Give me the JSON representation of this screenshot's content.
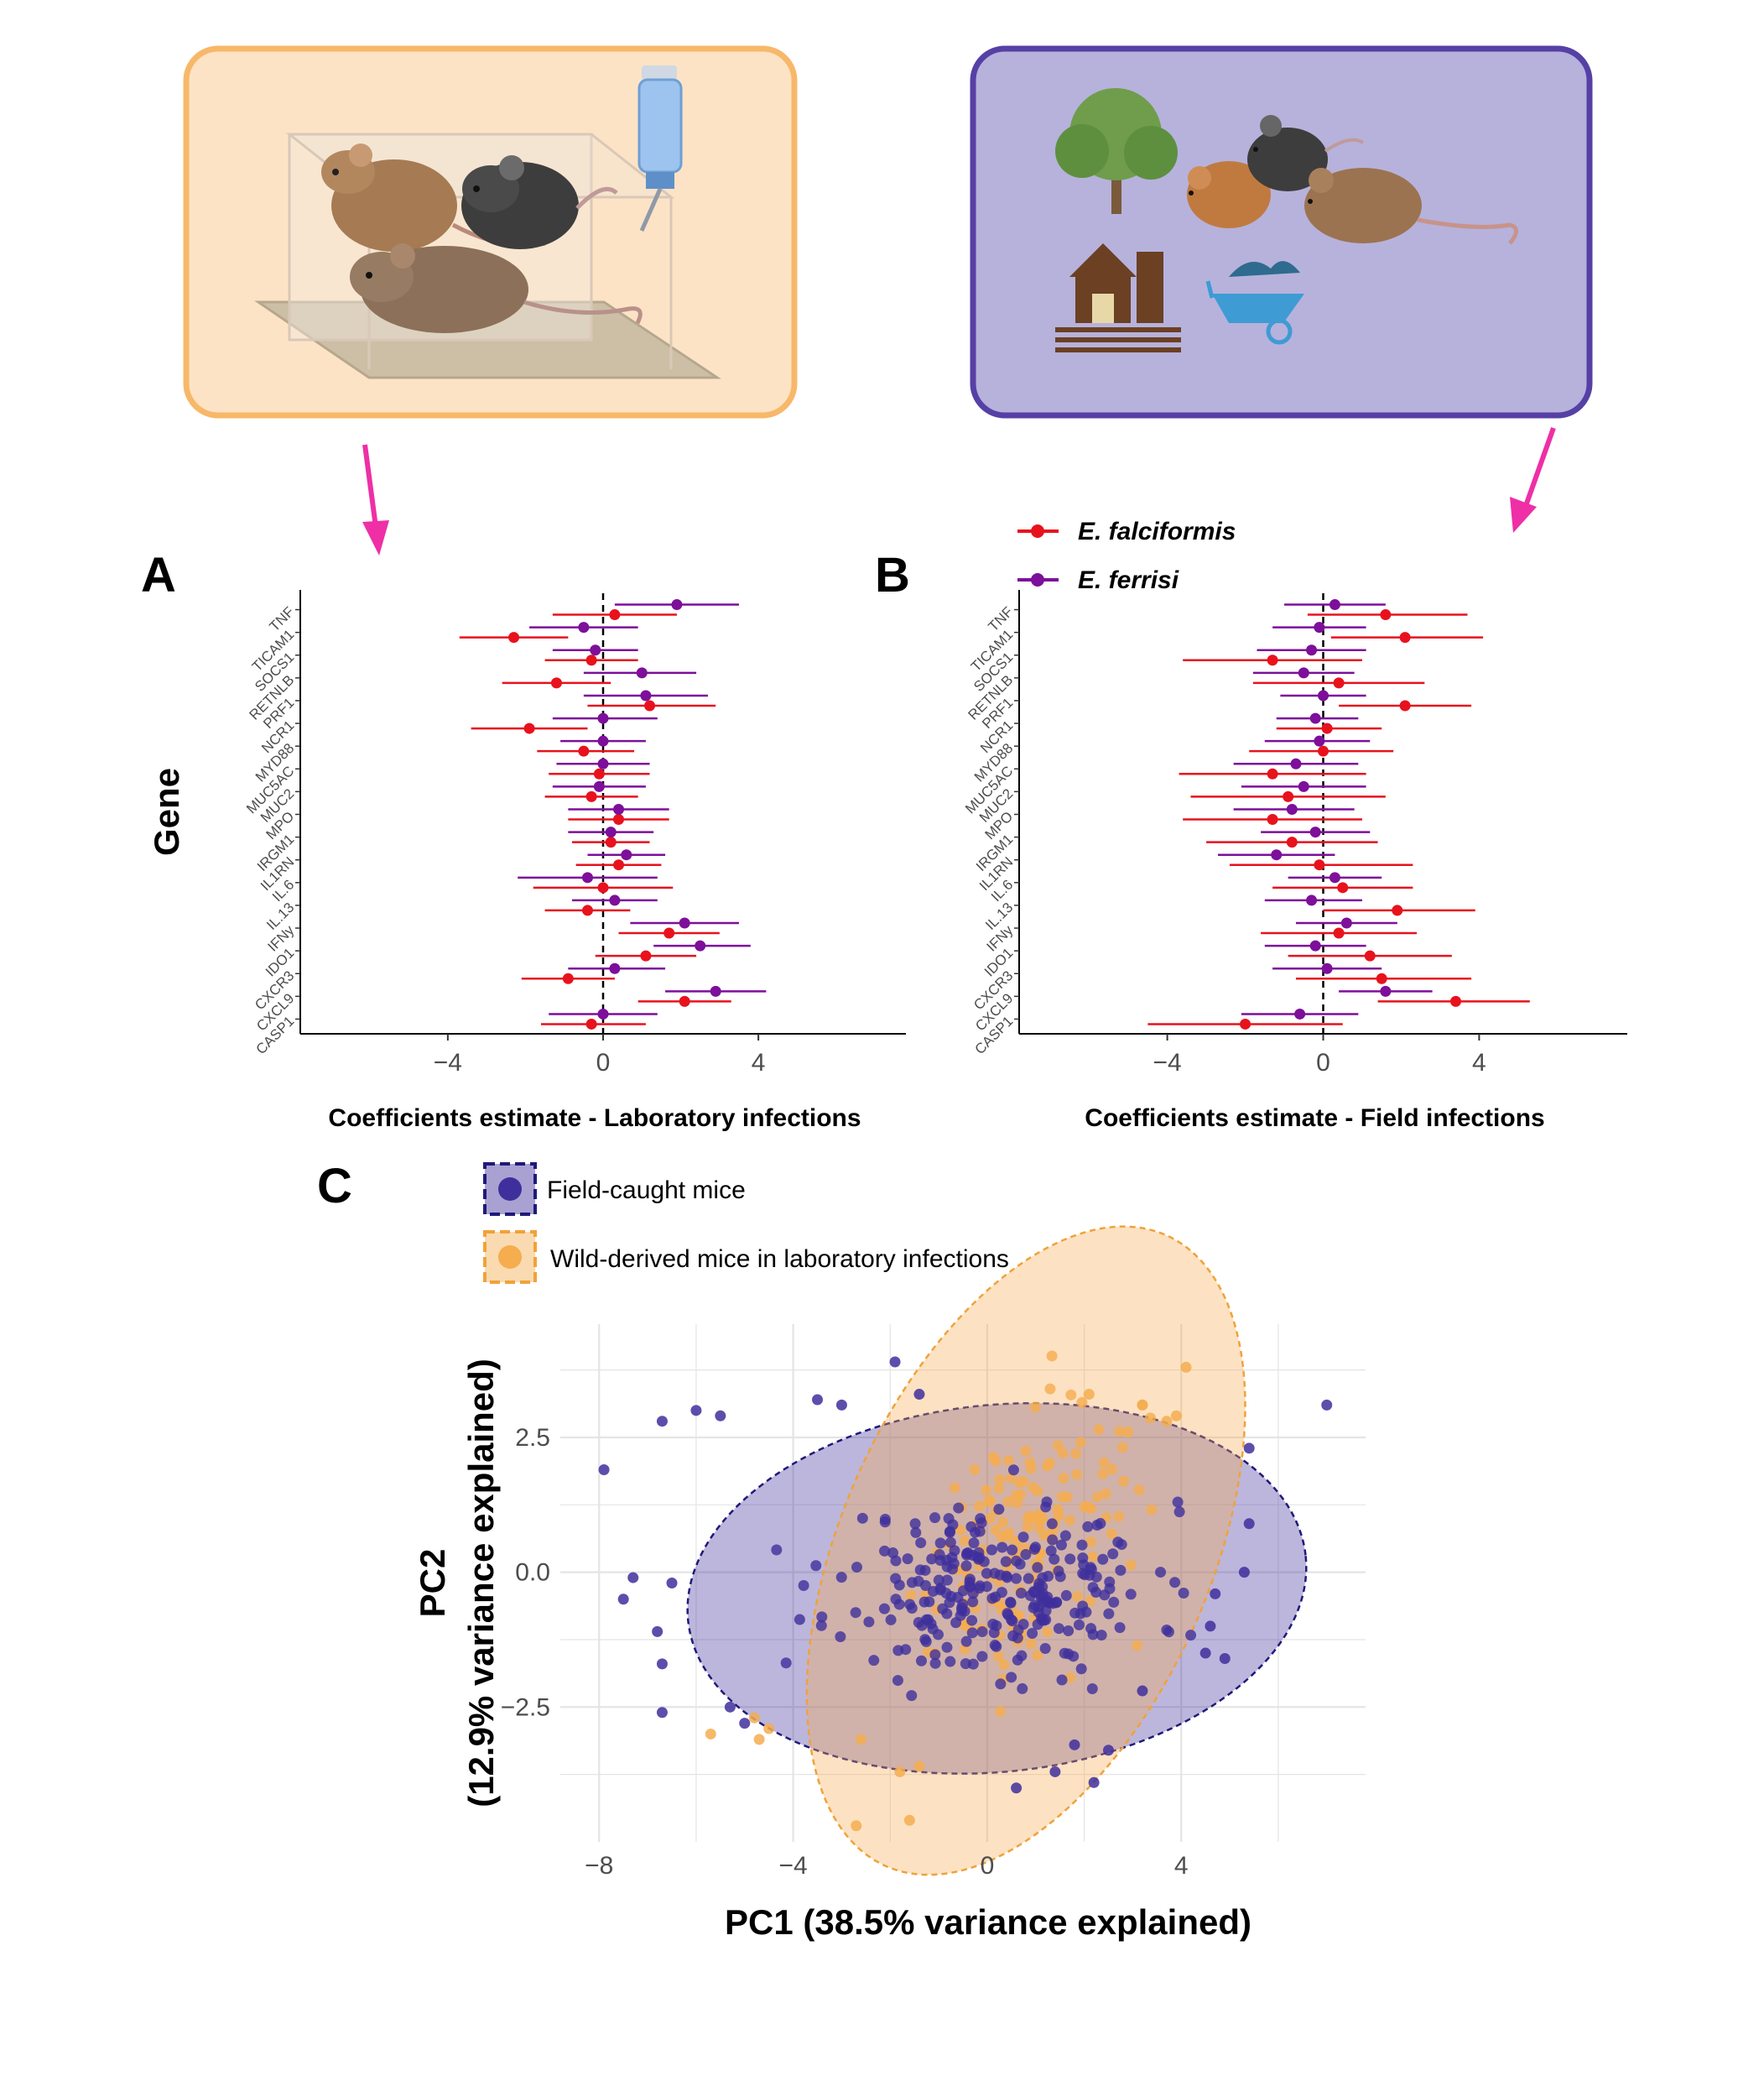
{
  "colors": {
    "falciformis": "#e8121d",
    "ferrisi": "#7d0f9a",
    "field": "#3f2f9c",
    "lab": "#f5ad4f",
    "arrow": "#ee2fa6",
    "lab_box_fill": "#fde3c5",
    "lab_box_stroke": "#f7b86a",
    "field_box_fill": "#b6b2dc",
    "field_box_stroke": "#5640a5"
  },
  "icons": {
    "lab_box": [
      "mouse-cage-icon",
      "brown-mouse-icon",
      "black-mouse-icon",
      "water-bottle-icon"
    ],
    "field_box": [
      "tree-icon",
      "brown-mouse-icon",
      "black-mouse-icon",
      "barn-icon",
      "wheelbarrow-icon"
    ]
  },
  "panels": {
    "A": "A",
    "B": "B",
    "C": "C"
  },
  "legend_AB": {
    "falciformis": "E. falciformis",
    "ferrisi": "E. ferrisi"
  },
  "legend_C": {
    "field": "Field-caught mice",
    "lab": "Wild-derived mice in laboratory infections"
  },
  "chart_data": [
    {
      "type": "scatter",
      "panel": "A",
      "xlabel": "Coefficients estimate  - Laboratory infections",
      "ylabel": "Gene",
      "xlim": [
        -7.8,
        7.8
      ],
      "xticks": [
        -4,
        0,
        4
      ],
      "xtick_labels": [
        "−4",
        "0",
        "4"
      ],
      "genes": [
        "TNF",
        "TICAM1",
        "SOCS1",
        "RETNLB",
        "PRF1",
        "NCR1",
        "MYD88",
        "MUC5AC",
        "MUC2",
        "MPO",
        "IRGM1",
        "IL1RN",
        "IL.6",
        "IL.13",
        "IFNy",
        "IDO1",
        "CXCR3",
        "CXCL9",
        "CASP1"
      ],
      "series": [
        {
          "name": "E. falciformis",
          "estimate": [
            0.3,
            -2.3,
            -0.3,
            -1.2,
            1.2,
            -1.9,
            -0.5,
            -0.1,
            -0.3,
            0.4,
            0.2,
            0.4,
            0.0,
            -0.4,
            1.7,
            1.1,
            -0.9,
            2.1,
            -0.3
          ],
          "lower": [
            -1.3,
            -3.7,
            -1.5,
            -2.6,
            -0.4,
            -3.4,
            -1.7,
            -1.4,
            -1.5,
            -0.9,
            -0.8,
            -0.7,
            -1.8,
            -1.5,
            0.4,
            -0.2,
            -2.1,
            0.9,
            -1.6
          ],
          "upper": [
            1.9,
            -0.9,
            0.9,
            0.2,
            2.9,
            -0.4,
            0.8,
            1.2,
            0.9,
            1.7,
            1.2,
            1.5,
            1.8,
            0.7,
            3.0,
            2.4,
            0.3,
            3.3,
            1.1
          ]
        },
        {
          "name": "E. ferrisi",
          "estimate": [
            1.9,
            -0.5,
            -0.2,
            1.0,
            1.1,
            0.0,
            0.0,
            0.0,
            -0.1,
            0.4,
            0.2,
            0.6,
            -0.4,
            0.3,
            2.1,
            2.5,
            0.3,
            2.9,
            0.0
          ],
          "lower": [
            0.3,
            -1.9,
            -1.3,
            -0.5,
            -0.5,
            -1.3,
            -1.1,
            -1.2,
            -1.3,
            -0.9,
            -0.9,
            -0.4,
            -2.2,
            -0.8,
            0.7,
            1.3,
            -0.9,
            1.6,
            -1.4
          ],
          "upper": [
            3.5,
            0.9,
            0.9,
            2.4,
            2.7,
            1.4,
            1.1,
            1.2,
            1.1,
            1.7,
            1.3,
            1.6,
            1.4,
            1.4,
            3.5,
            3.8,
            1.6,
            4.2,
            1.4
          ]
        }
      ]
    },
    {
      "type": "scatter",
      "panel": "B",
      "xlabel": "Coefficients estimate  - Field infections",
      "ylabel": "",
      "xlim": [
        -7.8,
        7.8
      ],
      "xticks": [
        -4,
        0,
        4
      ],
      "xtick_labels": [
        "−4",
        "0",
        "4"
      ],
      "genes": [
        "TNF",
        "TICAM1",
        "SOCS1",
        "RETNLB",
        "PRF1",
        "NCR1",
        "MYD88",
        "MUC5AC",
        "MUC2",
        "MPO",
        "IRGM1",
        "IL1RN",
        "IL.6",
        "IL.13",
        "IFNy",
        "IDO1",
        "CXCR3",
        "CXCL9",
        "CASP1"
      ],
      "series": [
        {
          "name": "E. falciformis",
          "estimate": [
            1.6,
            2.1,
            -1.3,
            0.4,
            2.1,
            0.1,
            0.0,
            -1.3,
            -0.9,
            -1.3,
            -0.8,
            -0.1,
            0.5,
            1.9,
            0.4,
            1.2,
            1.5,
            3.4,
            -2.0
          ],
          "lower": [
            -0.4,
            0.2,
            -3.6,
            -1.8,
            0.4,
            -1.2,
            -1.9,
            -3.7,
            -3.4,
            -3.6,
            -3.0,
            -2.4,
            -1.3,
            0.0,
            -1.6,
            -0.9,
            -0.7,
            1.4,
            -4.5
          ],
          "upper": [
            3.7,
            4.1,
            1.0,
            2.6,
            3.8,
            1.5,
            1.8,
            1.1,
            1.6,
            1.0,
            1.4,
            2.3,
            2.3,
            3.9,
            2.4,
            3.3,
            3.8,
            5.3,
            0.5
          ]
        },
        {
          "name": "E. ferrisi",
          "estimate": [
            0.3,
            -0.1,
            -0.3,
            -0.5,
            0.0,
            -0.2,
            -0.1,
            -0.7,
            -0.5,
            -0.8,
            -0.2,
            -1.2,
            0.3,
            -0.3,
            0.6,
            -0.2,
            0.1,
            1.6,
            -0.6
          ],
          "lower": [
            -1.0,
            -1.3,
            -1.7,
            -1.8,
            -1.1,
            -1.2,
            -1.5,
            -2.3,
            -2.1,
            -2.3,
            -1.6,
            -2.7,
            -0.9,
            -1.5,
            -0.7,
            -1.5,
            -1.3,
            0.4,
            -2.1
          ],
          "upper": [
            1.6,
            1.1,
            1.1,
            0.8,
            1.1,
            0.9,
            1.2,
            0.9,
            1.1,
            0.8,
            1.2,
            0.3,
            1.5,
            1.0,
            1.9,
            1.1,
            1.5,
            2.8,
            0.9
          ]
        }
      ]
    },
    {
      "type": "scatter",
      "panel": "C",
      "xlabel": "PC1 (38.5% variance explained)",
      "ylabel_line1": "PC2",
      "ylabel_line2": "(12.9% variance explained)",
      "xlim": [
        -8.8,
        7.8
      ],
      "ylim": [
        -5.0,
        4.6
      ],
      "xticks": [
        -8,
        -4,
        0,
        4
      ],
      "xtick_labels": [
        "−8",
        "−4",
        "0",
        "4"
      ],
      "yticks": [
        2.5,
        0.0,
        -2.5
      ],
      "ytick_labels": [
        "2.5",
        "0.0",
        "−2.5"
      ],
      "ellipses": [
        {
          "group": "Field-caught mice",
          "cx": 0.2,
          "cy": -0.3,
          "rx": 6.4,
          "ry": 3.4,
          "angle": -6
        },
        {
          "group": "Wild-derived mice in laboratory infections",
          "cx": 0.8,
          "cy": 0.4,
          "rx": 3.8,
          "ry": 6.4,
          "angle": 24
        }
      ],
      "series": [
        {
          "name": "Field-caught mice",
          "n": 260,
          "seed": 11,
          "center": [
            0.2,
            -0.3
          ],
          "spread": [
            2.6,
            1.3
          ],
          "outliers": [
            [
              -7.9,
              1.9
            ],
            [
              -6.7,
              2.8
            ],
            [
              -6.0,
              3.0
            ],
            [
              -5.5,
              2.9
            ],
            [
              -3.5,
              3.2
            ],
            [
              -3.0,
              3.1
            ],
            [
              -6.8,
              -1.1
            ],
            [
              -6.7,
              -1.7
            ],
            [
              -6.7,
              -2.6
            ],
            [
              -5.3,
              -2.5
            ],
            [
              -5.0,
              -2.8
            ],
            [
              -6.5,
              -0.2
            ],
            [
              -7.3,
              -0.1
            ],
            [
              -7.5,
              -0.5
            ],
            [
              -1.9,
              3.9
            ],
            [
              7.0,
              3.1
            ],
            [
              5.4,
              2.3
            ],
            [
              5.4,
              0.9
            ],
            [
              5.3,
              0.0
            ],
            [
              4.7,
              -0.4
            ],
            [
              4.5,
              -1.5
            ],
            [
              0.6,
              -4.0
            ],
            [
              1.4,
              -3.7
            ],
            [
              2.2,
              -3.9
            ],
            [
              -1.4,
              3.3
            ],
            [
              4.6,
              -1.0
            ],
            [
              4.9,
              -1.6
            ],
            [
              3.2,
              -2.2
            ],
            [
              2.5,
              -3.3
            ],
            [
              1.8,
              -3.2
            ]
          ]
        },
        {
          "name": "Wild-derived mice in laboratory infections",
          "n": 150,
          "seed": 29,
          "center": [
            0.6,
            0.6
          ],
          "spread": [
            1.7,
            1.9
          ],
          "outliers": [
            [
              4.1,
              3.8
            ],
            [
              3.9,
              2.9
            ],
            [
              3.7,
              2.8
            ],
            [
              3.2,
              3.1
            ],
            [
              2.9,
              2.6
            ],
            [
              -5.7,
              -3.0
            ],
            [
              -4.8,
              -2.7
            ],
            [
              -4.7,
              -3.1
            ],
            [
              -4.5,
              -2.9
            ],
            [
              -2.7,
              -4.7
            ],
            [
              -1.6,
              -4.6
            ],
            [
              -1.4,
              -3.6
            ],
            [
              -1.8,
              -3.7
            ],
            [
              -2.6,
              -3.1
            ],
            [
              2.1,
              3.3
            ]
          ]
        }
      ]
    }
  ]
}
